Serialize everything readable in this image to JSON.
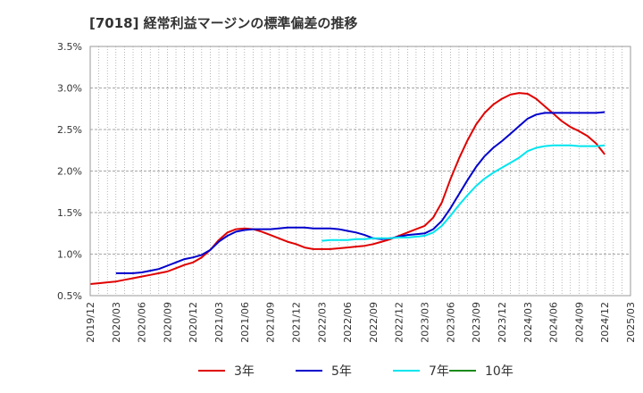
{
  "chart_data": {
    "type": "line",
    "title": "[7018]  経常利益マージンの標準偏差の推移",
    "x_labels": [
      "2019/12",
      "2020/03",
      "2020/06",
      "2020/09",
      "2020/12",
      "2021/03",
      "2021/06",
      "2021/09",
      "2021/12",
      "2022/03",
      "2022/06",
      "2022/09",
      "2022/12",
      "2023/03",
      "2023/06",
      "2023/09",
      "2023/12",
      "2024/03",
      "2024/06",
      "2024/09",
      "2024/12",
      "2025/03"
    ],
    "y_ticks": [
      "3.5%",
      "3.0%",
      "2.5%",
      "2.0%",
      "1.5%",
      "1.0%",
      "0.5%"
    ],
    "y_tick_values": [
      3.5,
      3.0,
      2.5,
      2.0,
      1.5,
      1.0,
      0.5
    ],
    "ylim": [
      0.5,
      3.5
    ],
    "grid": true,
    "legend_position": "bottom",
    "series": [
      {
        "name": "3年",
        "color": "#e00000",
        "points": [
          [
            "2019/12",
            0.64
          ],
          [
            "2020/01",
            0.65
          ],
          [
            "2020/02",
            0.66
          ],
          [
            "2020/03",
            0.67
          ],
          [
            "2020/04",
            0.69
          ],
          [
            "2020/05",
            0.71
          ],
          [
            "2020/06",
            0.73
          ],
          [
            "2020/07",
            0.75
          ],
          [
            "2020/08",
            0.77
          ],
          [
            "2020/09",
            0.79
          ],
          [
            "2020/10",
            0.83
          ],
          [
            "2020/11",
            0.87
          ],
          [
            "2020/12",
            0.9
          ],
          [
            "2021/01",
            0.96
          ],
          [
            "2021/02",
            1.05
          ],
          [
            "2021/03",
            1.17
          ],
          [
            "2021/04",
            1.26
          ],
          [
            "2021/05",
            1.3
          ],
          [
            "2021/06",
            1.31
          ],
          [
            "2021/07",
            1.3
          ],
          [
            "2021/08",
            1.27
          ],
          [
            "2021/09",
            1.23
          ],
          [
            "2021/10",
            1.19
          ],
          [
            "2021/11",
            1.15
          ],
          [
            "2021/12",
            1.12
          ],
          [
            "2022/01",
            1.08
          ],
          [
            "2022/02",
            1.06
          ],
          [
            "2022/03",
            1.06
          ],
          [
            "2022/04",
            1.06
          ],
          [
            "2022/05",
            1.07
          ],
          [
            "2022/06",
            1.08
          ],
          [
            "2022/07",
            1.09
          ],
          [
            "2022/08",
            1.1
          ],
          [
            "2022/09",
            1.12
          ],
          [
            "2022/10",
            1.15
          ],
          [
            "2022/11",
            1.18
          ],
          [
            "2022/12",
            1.22
          ],
          [
            "2023/01",
            1.26
          ],
          [
            "2023/02",
            1.3
          ],
          [
            "2023/03",
            1.34
          ],
          [
            "2023/04",
            1.44
          ],
          [
            "2023/05",
            1.62
          ],
          [
            "2023/06",
            1.9
          ],
          [
            "2023/07",
            2.15
          ],
          [
            "2023/08",
            2.37
          ],
          [
            "2023/09",
            2.56
          ],
          [
            "2023/10",
            2.7
          ],
          [
            "2023/11",
            2.8
          ],
          [
            "2023/12",
            2.87
          ],
          [
            "2024/01",
            2.92
          ],
          [
            "2024/02",
            2.94
          ],
          [
            "2024/03",
            2.93
          ],
          [
            "2024/04",
            2.87
          ],
          [
            "2024/05",
            2.78
          ],
          [
            "2024/06",
            2.69
          ],
          [
            "2024/07",
            2.6
          ],
          [
            "2024/08",
            2.53
          ],
          [
            "2024/09",
            2.48
          ],
          [
            "2024/10",
            2.42
          ],
          [
            "2024/11",
            2.33
          ],
          [
            "2024/12",
            2.2
          ]
        ]
      },
      {
        "name": "5年",
        "color": "#0000cc",
        "points": [
          [
            "2020/03",
            0.77
          ],
          [
            "2020/04",
            0.77
          ],
          [
            "2020/05",
            0.77
          ],
          [
            "2020/06",
            0.78
          ],
          [
            "2020/07",
            0.8
          ],
          [
            "2020/08",
            0.82
          ],
          [
            "2020/09",
            0.86
          ],
          [
            "2020/10",
            0.9
          ],
          [
            "2020/11",
            0.94
          ],
          [
            "2020/12",
            0.96
          ],
          [
            "2021/01",
            0.99
          ],
          [
            "2021/02",
            1.05
          ],
          [
            "2021/03",
            1.15
          ],
          [
            "2021/04",
            1.22
          ],
          [
            "2021/05",
            1.27
          ],
          [
            "2021/06",
            1.29
          ],
          [
            "2021/07",
            1.3
          ],
          [
            "2021/08",
            1.3
          ],
          [
            "2021/09",
            1.3
          ],
          [
            "2021/10",
            1.31
          ],
          [
            "2021/11",
            1.32
          ],
          [
            "2021/12",
            1.32
          ],
          [
            "2022/01",
            1.32
          ],
          [
            "2022/02",
            1.31
          ],
          [
            "2022/03",
            1.31
          ],
          [
            "2022/04",
            1.31
          ],
          [
            "2022/05",
            1.3
          ],
          [
            "2022/06",
            1.28
          ],
          [
            "2022/07",
            1.26
          ],
          [
            "2022/08",
            1.23
          ],
          [
            "2022/09",
            1.19
          ],
          [
            "2022/10",
            1.18
          ],
          [
            "2022/11",
            1.19
          ],
          [
            "2022/12",
            1.21
          ],
          [
            "2023/01",
            1.23
          ],
          [
            "2023/02",
            1.24
          ],
          [
            "2023/03",
            1.25
          ],
          [
            "2023/04",
            1.3
          ],
          [
            "2023/05",
            1.4
          ],
          [
            "2023/06",
            1.55
          ],
          [
            "2023/07",
            1.72
          ],
          [
            "2023/08",
            1.89
          ],
          [
            "2023/09",
            2.05
          ],
          [
            "2023/10",
            2.18
          ],
          [
            "2023/11",
            2.28
          ],
          [
            "2023/12",
            2.36
          ],
          [
            "2024/01",
            2.45
          ],
          [
            "2024/02",
            2.54
          ],
          [
            "2024/03",
            2.63
          ],
          [
            "2024/04",
            2.68
          ],
          [
            "2024/05",
            2.7
          ],
          [
            "2024/06",
            2.7
          ],
          [
            "2024/07",
            2.7
          ],
          [
            "2024/08",
            2.7
          ],
          [
            "2024/09",
            2.7
          ],
          [
            "2024/10",
            2.7
          ],
          [
            "2024/11",
            2.7
          ],
          [
            "2024/12",
            2.71
          ]
        ]
      },
      {
        "name": "7年",
        "color": "#00e5ee",
        "points": [
          [
            "2022/03",
            1.16
          ],
          [
            "2022/04",
            1.17
          ],
          [
            "2022/05",
            1.17
          ],
          [
            "2022/06",
            1.17
          ],
          [
            "2022/07",
            1.18
          ],
          [
            "2022/08",
            1.18
          ],
          [
            "2022/09",
            1.19
          ],
          [
            "2022/10",
            1.19
          ],
          [
            "2022/11",
            1.19
          ],
          [
            "2022/12",
            1.2
          ],
          [
            "2023/01",
            1.2
          ],
          [
            "2023/02",
            1.21
          ],
          [
            "2023/03",
            1.22
          ],
          [
            "2023/04",
            1.26
          ],
          [
            "2023/05",
            1.34
          ],
          [
            "2023/06",
            1.46
          ],
          [
            "2023/07",
            1.59
          ],
          [
            "2023/08",
            1.71
          ],
          [
            "2023/09",
            1.82
          ],
          [
            "2023/10",
            1.91
          ],
          [
            "2023/11",
            1.98
          ],
          [
            "2023/12",
            2.04
          ],
          [
            "2024/01",
            2.1
          ],
          [
            "2024/02",
            2.16
          ],
          [
            "2024/03",
            2.24
          ],
          [
            "2024/04",
            2.28
          ],
          [
            "2024/05",
            2.3
          ],
          [
            "2024/06",
            2.31
          ],
          [
            "2024/07",
            2.31
          ],
          [
            "2024/08",
            2.31
          ],
          [
            "2024/09",
            2.3
          ],
          [
            "2024/10",
            2.3
          ],
          [
            "2024/11",
            2.3
          ],
          [
            "2024/12",
            2.31
          ]
        ]
      },
      {
        "name": "10年",
        "color": "#1a8a1a",
        "points": []
      }
    ]
  }
}
